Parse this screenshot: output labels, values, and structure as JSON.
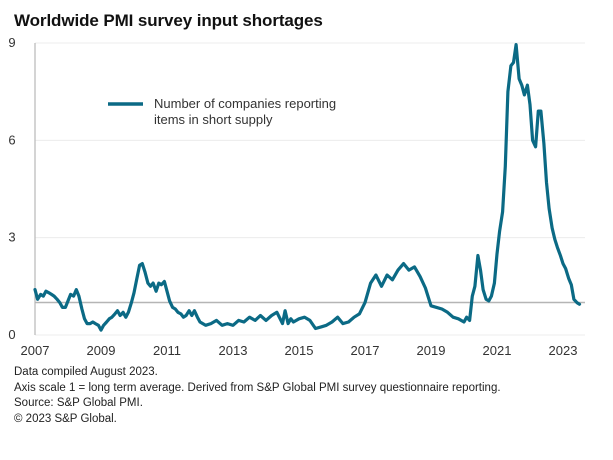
{
  "chart_data": {
    "type": "line",
    "title": "Worldwide PMI survey input shortages",
    "xlabel": "",
    "ylabel": "",
    "xlim": [
      2007,
      2023.6
    ],
    "ylim": [
      0,
      9
    ],
    "yticks": [
      0,
      3,
      6,
      9
    ],
    "xticks": [
      2007,
      2009,
      2011,
      2013,
      2015,
      2017,
      2019,
      2021,
      2023
    ],
    "grid": true,
    "reference_line": {
      "value": 1,
      "label": "long term average"
    },
    "legend_position": "top-left",
    "series": [
      {
        "name": "Number of companies reporting items in short supply",
        "color": "#0b6a85",
        "x": [
          2007.0,
          2007.08,
          2007.17,
          2007.25,
          2007.33,
          2007.42,
          2007.5,
          2007.58,
          2007.67,
          2007.75,
          2007.83,
          2007.92,
          2008.0,
          2008.08,
          2008.17,
          2008.25,
          2008.33,
          2008.42,
          2008.5,
          2008.58,
          2008.67,
          2008.75,
          2008.83,
          2008.92,
          2009.0,
          2009.08,
          2009.17,
          2009.25,
          2009.33,
          2009.42,
          2009.5,
          2009.58,
          2009.67,
          2009.75,
          2009.83,
          2009.92,
          2010.0,
          2010.08,
          2010.17,
          2010.25,
          2010.33,
          2010.42,
          2010.5,
          2010.58,
          2010.67,
          2010.75,
          2010.83,
          2010.92,
          2011.0,
          2011.08,
          2011.17,
          2011.25,
          2011.33,
          2011.42,
          2011.5,
          2011.58,
          2011.67,
          2011.75,
          2011.83,
          2011.92,
          2012.0,
          2012.17,
          2012.33,
          2012.5,
          2012.67,
          2012.83,
          2013.0,
          2013.17,
          2013.33,
          2013.5,
          2013.67,
          2013.83,
          2014.0,
          2014.17,
          2014.33,
          2014.5,
          2014.58,
          2014.67,
          2014.75,
          2014.83,
          2015.0,
          2015.17,
          2015.33,
          2015.5,
          2015.67,
          2015.83,
          2016.0,
          2016.17,
          2016.33,
          2016.5,
          2016.67,
          2016.83,
          2017.0,
          2017.17,
          2017.33,
          2017.5,
          2017.67,
          2017.83,
          2018.0,
          2018.17,
          2018.33,
          2018.5,
          2018.67,
          2018.83,
          2019.0,
          2019.17,
          2019.33,
          2019.5,
          2019.67,
          2019.83,
          2020.0,
          2020.08,
          2020.17,
          2020.25,
          2020.33,
          2020.42,
          2020.5,
          2020.58,
          2020.67,
          2020.75,
          2020.83,
          2020.92,
          2021.0,
          2021.08,
          2021.17,
          2021.25,
          2021.33,
          2021.42,
          2021.5,
          2021.58,
          2021.67,
          2021.75,
          2021.83,
          2021.92,
          2022.0,
          2022.08,
          2022.17,
          2022.25,
          2022.33,
          2022.42,
          2022.5,
          2022.58,
          2022.67,
          2022.75,
          2022.83,
          2022.92,
          2023.0,
          2023.08,
          2023.17,
          2023.25,
          2023.33,
          2023.42,
          2023.5
        ],
        "y": [
          1.4,
          1.1,
          1.25,
          1.2,
          1.35,
          1.3,
          1.25,
          1.2,
          1.1,
          1.0,
          0.85,
          0.85,
          1.05,
          1.25,
          1.2,
          1.4,
          1.2,
          0.8,
          0.5,
          0.35,
          0.35,
          0.4,
          0.35,
          0.3,
          0.15,
          0.3,
          0.4,
          0.5,
          0.55,
          0.65,
          0.75,
          0.6,
          0.7,
          0.55,
          0.7,
          1.0,
          1.3,
          1.7,
          2.15,
          2.2,
          1.95,
          1.6,
          1.5,
          1.6,
          1.35,
          1.6,
          1.55,
          1.65,
          1.35,
          1.05,
          0.85,
          0.8,
          0.7,
          0.65,
          0.55,
          0.6,
          0.75,
          0.6,
          0.75,
          0.55,
          0.4,
          0.3,
          0.35,
          0.45,
          0.3,
          0.35,
          0.3,
          0.45,
          0.4,
          0.55,
          0.45,
          0.6,
          0.45,
          0.6,
          0.7,
          0.35,
          0.75,
          0.35,
          0.5,
          0.4,
          0.5,
          0.55,
          0.45,
          0.2,
          0.25,
          0.3,
          0.4,
          0.55,
          0.35,
          0.4,
          0.55,
          0.65,
          1.0,
          1.6,
          1.85,
          1.5,
          1.85,
          1.7,
          2.0,
          2.2,
          2.0,
          2.1,
          1.8,
          1.45,
          0.9,
          0.85,
          0.8,
          0.7,
          0.55,
          0.5,
          0.4,
          0.55,
          0.45,
          1.2,
          1.5,
          2.45,
          2.0,
          1.4,
          1.1,
          1.05,
          1.2,
          1.6,
          2.5,
          3.2,
          3.8,
          5.2,
          7.5,
          8.3,
          8.4,
          8.95,
          7.9,
          7.7,
          7.4,
          7.7,
          7.1,
          6.0,
          5.8,
          6.9,
          6.9,
          5.9,
          4.7,
          3.9,
          3.3,
          2.95,
          2.7,
          2.45,
          2.2,
          2.05,
          1.75,
          1.55,
          1.1,
          1.0,
          0.95
        ]
      }
    ]
  },
  "legend": {
    "line1": "Number of companies reporting",
    "line2": "items in short supply"
  },
  "footnotes": [
    "Data compiled August 2023.",
    "Axis scale 1 = long term average. Derived from S&P Global PMI survey questionnaire reporting.",
    "Source: S&P Global PMI.",
    "© 2023 S&P Global."
  ]
}
